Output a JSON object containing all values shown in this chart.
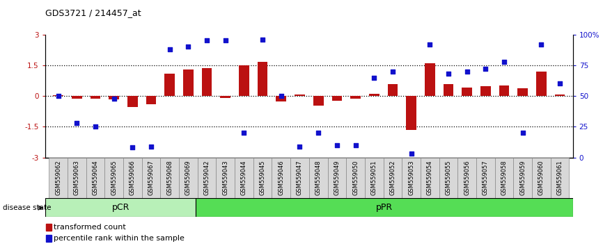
{
  "title": "GDS3721 / 214457_at",
  "samples": [
    "GSM559062",
    "GSM559063",
    "GSM559064",
    "GSM559065",
    "GSM559066",
    "GSM559067",
    "GSM559068",
    "GSM559069",
    "GSM559042",
    "GSM559043",
    "GSM559044",
    "GSM559045",
    "GSM559046",
    "GSM559047",
    "GSM559048",
    "GSM559049",
    "GSM559050",
    "GSM559051",
    "GSM559052",
    "GSM559053",
    "GSM559054",
    "GSM559055",
    "GSM559056",
    "GSM559057",
    "GSM559058",
    "GSM559059",
    "GSM559060",
    "GSM559061"
  ],
  "transformed_count": [
    0.05,
    -0.12,
    -0.15,
    -0.18,
    -0.55,
    -0.42,
    1.1,
    1.3,
    1.35,
    -0.1,
    1.48,
    1.65,
    -0.28,
    0.08,
    -0.48,
    -0.22,
    -0.15,
    0.12,
    0.58,
    -1.65,
    1.6,
    0.58,
    0.42,
    0.48,
    0.52,
    0.38,
    1.2,
    0.08
  ],
  "percentile_rank": [
    50,
    28,
    25,
    48,
    8,
    9,
    88,
    90,
    95,
    95,
    20,
    96,
    50,
    9,
    20,
    10,
    10,
    65,
    70,
    3,
    92,
    68,
    70,
    72,
    78,
    20,
    92,
    60
  ],
  "pcr_count": 8,
  "ppr_count": 20,
  "bar_color": "#bb1111",
  "dot_color": "#1111cc",
  "pcr_color": "#b8f0b8",
  "ppr_color": "#55dd55",
  "pcr_label": "pCR",
  "ppr_label": "pPR",
  "disease_state_label": "disease state",
  "legend_bar": "transformed count",
  "legend_dot": "percentile rank within the sample",
  "ylim_left": [
    -3,
    3
  ],
  "ylim_right": [
    0,
    100
  ],
  "yticks_left": [
    -3,
    -1.5,
    0,
    1.5,
    3
  ],
  "ytick_labels_left": [
    "-3",
    "-1.5",
    "0",
    "1.5",
    "3"
  ],
  "yticks_right": [
    0,
    25,
    50,
    75,
    100
  ],
  "ytick_labels_right": [
    "0",
    "25",
    "50",
    "75",
    "100%"
  ],
  "hlines": [
    -1.5,
    0,
    1.5
  ],
  "cell_bg": "#d8d8d8",
  "cell_edge": "#888888"
}
